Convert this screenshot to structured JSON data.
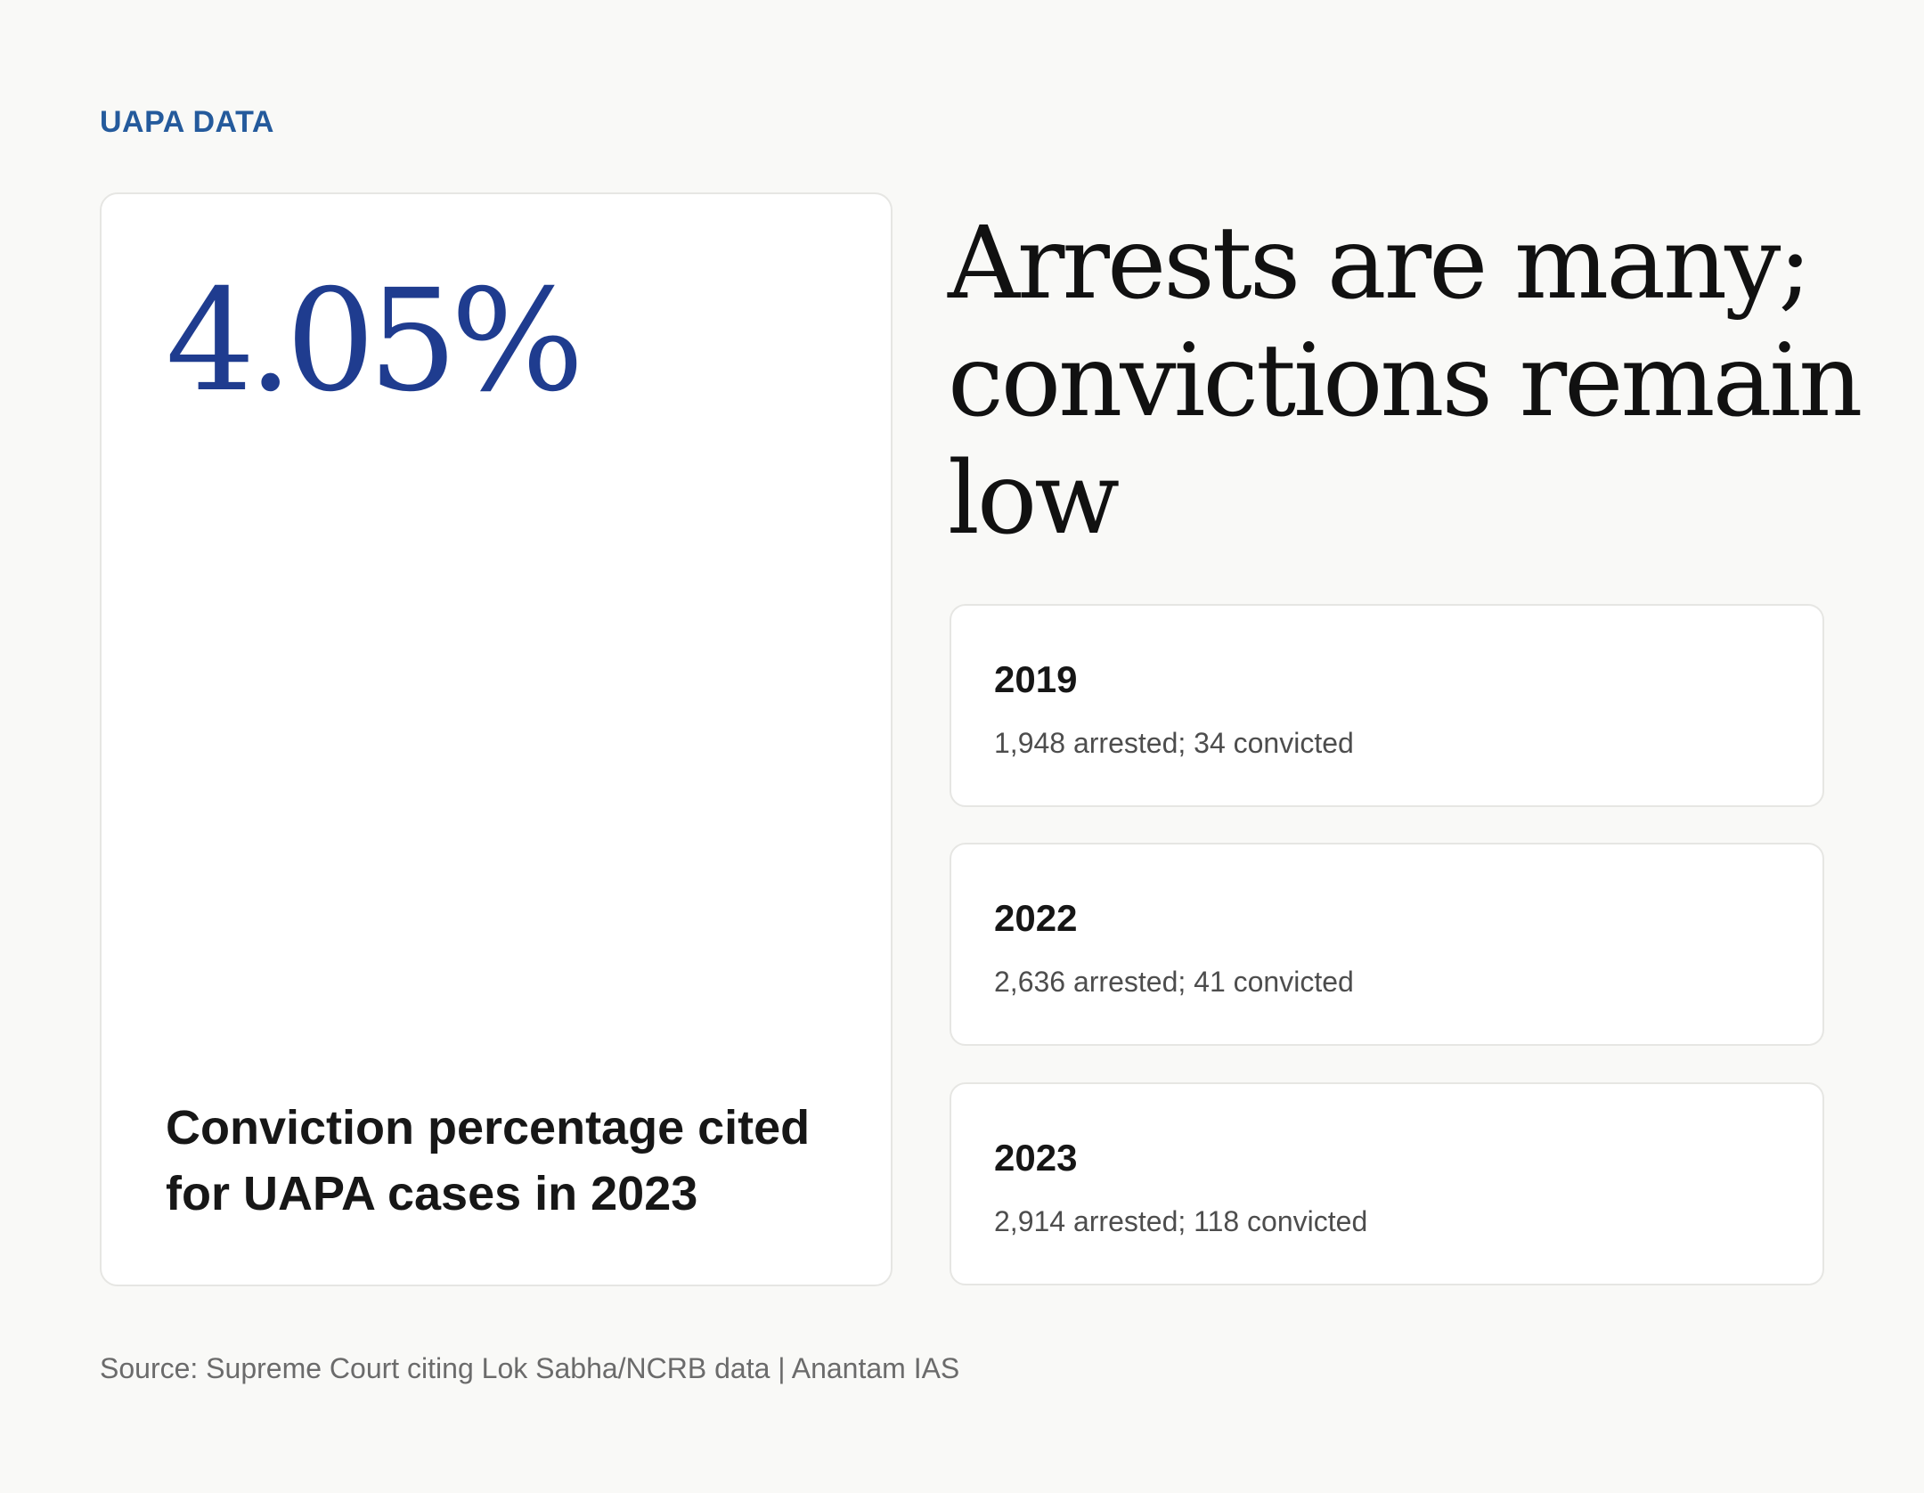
{
  "eyebrow": "UAPA DATA",
  "stat": {
    "value": "4.05%",
    "caption": "Conviction percentage cited for UAPA cases in 2023"
  },
  "headline": "Arrests are many; convictions remain low",
  "years": [
    {
      "year": "2019",
      "detail": "1,948 arrested; 34 convicted"
    },
    {
      "year": "2022",
      "detail": "2,636 arrested; 41 convicted"
    },
    {
      "year": "2023",
      "detail": "2,914 arrested; 118 convicted"
    }
  ],
  "source": "Source: Supreme Court citing Lok Sabha/NCRB data | Anantam IAS",
  "colors": {
    "background": "#f9f9f7",
    "accent_blue": "#245a9c",
    "stat_blue": "#1f3c8f",
    "text_dark": "#161616",
    "text_muted": "#4d4d4d"
  }
}
